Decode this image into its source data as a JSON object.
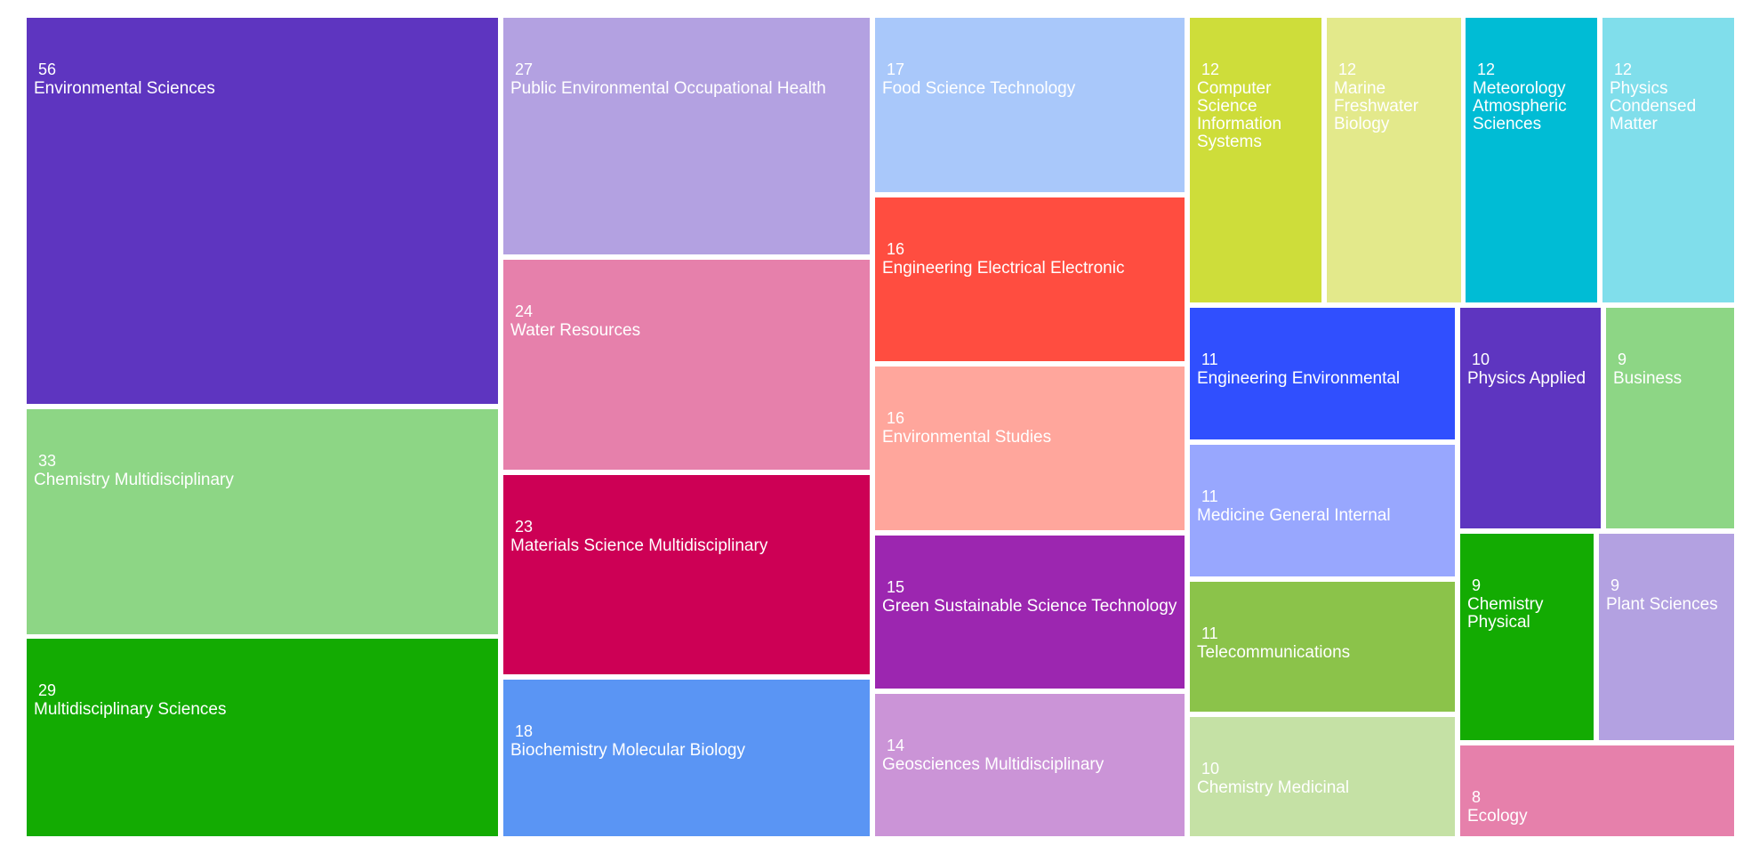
{
  "chart_data": {
    "type": "treemap",
    "items": [
      {
        "label": "Environmental Sciences",
        "value": 56,
        "color": "#5e35c0"
      },
      {
        "label": "Chemistry Multidisciplinary",
        "value": 33,
        "color": "#8dd685"
      },
      {
        "label": "Multidisciplinary Sciences",
        "value": 29,
        "color": "#13ab02"
      },
      {
        "label": "Public Environmental Occupational Health",
        "value": 27,
        "color": "#b3a1e1"
      },
      {
        "label": "Water Resources",
        "value": 24,
        "color": "#e680ab"
      },
      {
        "label": "Materials Science Multidisciplinary",
        "value": 23,
        "color": "#cd0055"
      },
      {
        "label": "Biochemistry Molecular Biology",
        "value": 18,
        "color": "#5a95f4"
      },
      {
        "label": "Food Science Technology",
        "value": 17,
        "color": "#a9c8fa"
      },
      {
        "label": "Engineering Electrical Electronic",
        "value": 16,
        "color": "#ff4d40"
      },
      {
        "label": "Environmental Studies",
        "value": 16,
        "color": "#ffa69c"
      },
      {
        "label": "Green Sustainable Science Technology",
        "value": 15,
        "color": "#9c26b0"
      },
      {
        "label": "Geosciences Multidisciplinary",
        "value": 14,
        "color": "#cb94d7"
      },
      {
        "label": "Computer Science Information Systems",
        "value": 12,
        "color": "#cedd3a"
      },
      {
        "label": "Marine Freshwater Biology",
        "value": 12,
        "color": "#e3e98b"
      },
      {
        "label": "Meteorology Atmospheric Sciences",
        "value": 12,
        "color": "#00bcd5"
      },
      {
        "label": "Physics Condensed Matter",
        "value": 12,
        "color": "#80deeb"
      },
      {
        "label": "Engineering Environmental",
        "value": 11,
        "color": "#304ffe"
      },
      {
        "label": "Medicine General Internal",
        "value": 11,
        "color": "#98a7fe"
      },
      {
        "label": "Telecommunications",
        "value": 11,
        "color": "#8bc34a"
      },
      {
        "label": "Chemistry Medicinal",
        "value": 10,
        "color": "#c5e1a5"
      },
      {
        "label": "Physics Applied",
        "value": 10,
        "color": "#5e35c0"
      },
      {
        "label": "Business",
        "value": 9,
        "color": "#8dd685"
      },
      {
        "label": "Chemistry Physical",
        "value": 9,
        "color": "#13ab02"
      },
      {
        "label": "Plant Sciences",
        "value": 9,
        "color": "#b3a1e1"
      },
      {
        "label": "Ecology",
        "value": 8,
        "color": "#e680ab"
      }
    ]
  }
}
